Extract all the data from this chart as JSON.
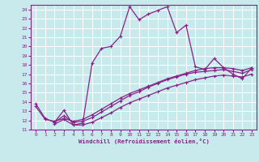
{
  "xlabel": "Windchill (Refroidissement éolien,°C)",
  "bg_color": "#c8eaed",
  "line_color": "#882288",
  "grid_color": "#aad4d8",
  "xlim": [
    -0.5,
    23.5
  ],
  "ylim": [
    11,
    24.5
  ],
  "yticks": [
    11,
    12,
    13,
    14,
    15,
    16,
    17,
    18,
    19,
    20,
    21,
    22,
    23,
    24
  ],
  "xticks": [
    0,
    1,
    2,
    3,
    4,
    5,
    6,
    7,
    8,
    9,
    10,
    11,
    12,
    13,
    14,
    15,
    16,
    17,
    18,
    19,
    20,
    21,
    22,
    23
  ],
  "line1_x": [
    0,
    1,
    2,
    3,
    4,
    5,
    6,
    7,
    8,
    9,
    10,
    11,
    12,
    13,
    14,
    15,
    16,
    17,
    18,
    19,
    20,
    21,
    22,
    23
  ],
  "line1_y": [
    13.8,
    12.2,
    11.8,
    13.1,
    11.5,
    11.7,
    18.2,
    19.8,
    20.0,
    21.1,
    24.3,
    22.9,
    23.5,
    23.9,
    24.3,
    21.5,
    22.3,
    17.8,
    17.5,
    18.7,
    17.7,
    17.0,
    16.5,
    17.7
  ],
  "line2_x": [
    0,
    1,
    2,
    3,
    4,
    5,
    6,
    7,
    8,
    9,
    10,
    11,
    12,
    13,
    14,
    15,
    16,
    17,
    18,
    19,
    20,
    21,
    22,
    23
  ],
  "line2_y": [
    13.5,
    12.1,
    11.9,
    12.2,
    11.9,
    12.1,
    12.6,
    13.2,
    13.8,
    14.4,
    14.9,
    15.3,
    15.7,
    16.1,
    16.5,
    16.8,
    17.1,
    17.4,
    17.6,
    17.7,
    17.7,
    17.6,
    17.4,
    17.7
  ],
  "line3_x": [
    2,
    3,
    4,
    5,
    6,
    7,
    8,
    9,
    10,
    11,
    12,
    13,
    14,
    15,
    16,
    17,
    18,
    19,
    20,
    21,
    22,
    23
  ],
  "line3_y": [
    11.8,
    12.5,
    11.8,
    11.9,
    12.3,
    12.9,
    13.5,
    14.1,
    14.7,
    15.1,
    15.6,
    16.0,
    16.4,
    16.7,
    17.0,
    17.2,
    17.3,
    17.4,
    17.5,
    17.3,
    17.1,
    17.5
  ],
  "line4_x": [
    2,
    3,
    4,
    5,
    6,
    7,
    8,
    9,
    10,
    11,
    12,
    13,
    14,
    15,
    16,
    17,
    18,
    19,
    20,
    21,
    22,
    23
  ],
  "line4_y": [
    11.6,
    12.1,
    11.5,
    11.5,
    11.8,
    12.3,
    12.8,
    13.4,
    13.9,
    14.3,
    14.7,
    15.1,
    15.5,
    15.8,
    16.1,
    16.4,
    16.6,
    16.8,
    16.9,
    16.8,
    16.7,
    17.0
  ]
}
